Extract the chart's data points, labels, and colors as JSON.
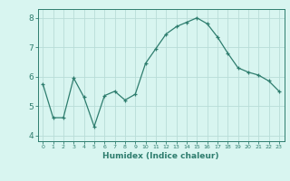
{
  "x": [
    0,
    1,
    2,
    3,
    4,
    5,
    6,
    7,
    8,
    9,
    10,
    11,
    12,
    13,
    14,
    15,
    16,
    17,
    18,
    19,
    20,
    21,
    22,
    23
  ],
  "y": [
    5.75,
    4.6,
    4.6,
    5.95,
    5.3,
    4.3,
    5.35,
    5.5,
    5.2,
    5.4,
    6.45,
    6.95,
    7.45,
    7.7,
    7.85,
    8.0,
    7.8,
    7.35,
    6.8,
    6.3,
    6.15,
    6.05,
    5.85,
    5.5
  ],
  "xlabel": "Humidex (Indice chaleur)",
  "ylim": [
    3.8,
    8.3
  ],
  "xlim": [
    -0.5,
    23.5
  ],
  "line_color": "#2e7d6e",
  "marker": "+",
  "bg_color": "#d8f5f0",
  "grid_color": "#b8ddd8",
  "axis_color": "#2e7d6e",
  "tick_color": "#2e7d6e",
  "label_color": "#2e7d6e",
  "yticks": [
    4,
    5,
    6,
    7,
    8
  ],
  "xticks": [
    0,
    1,
    2,
    3,
    4,
    5,
    6,
    7,
    8,
    9,
    10,
    11,
    12,
    13,
    14,
    15,
    16,
    17,
    18,
    19,
    20,
    21,
    22,
    23
  ]
}
